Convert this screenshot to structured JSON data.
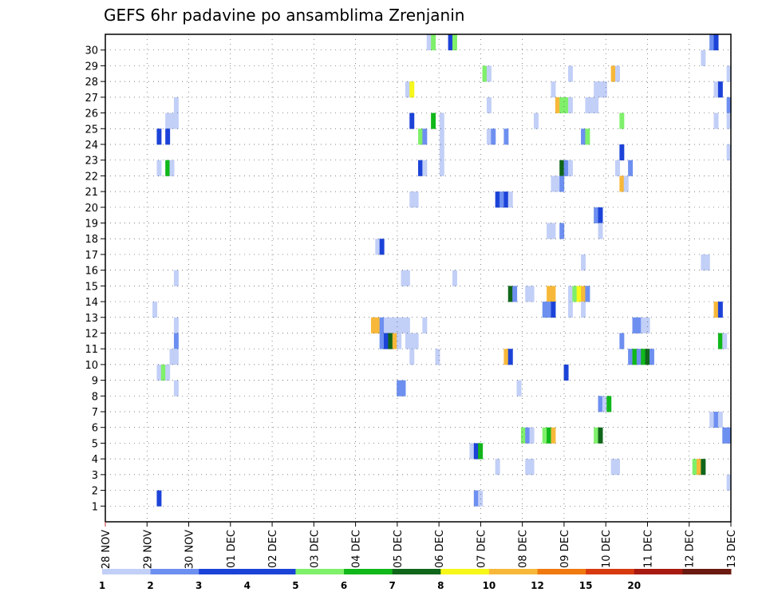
{
  "chart_data": {
    "type": "heatmap",
    "title": "GEFS 6hr padavine po ansamblima Zrenjanin",
    "xlabel": "",
    "ylabel": "",
    "x_tick_labels": [
      "28 NOV",
      "29 NOV",
      "30 NOV",
      "01 DEC",
      "02 DEC",
      "03 DEC",
      "04 DEC",
      "05 DEC",
      "06 DEC",
      "07 DEC",
      "08 DEC",
      "09 DEC",
      "10 DEC",
      "11 DEC",
      "12 DEC",
      "13 DEC"
    ],
    "x_range_days": [
      0,
      15
    ],
    "y_tick_labels": [
      "1",
      "2",
      "3",
      "4",
      "5",
      "6",
      "7",
      "8",
      "9",
      "10",
      "11",
      "12",
      "13",
      "14",
      "15",
      "16",
      "17",
      "18",
      "19",
      "20",
      "21",
      "22",
      "23",
      "24",
      "25",
      "26",
      "27",
      "28",
      "29",
      "30"
    ],
    "y_range": [
      0,
      30
    ],
    "grid": "dotted",
    "time_step_hours": 6,
    "colorbar": {
      "labels": [
        "1",
        "2",
        "3",
        "4",
        "5",
        "6",
        "7",
        "8",
        "10",
        "12",
        "15",
        "20"
      ],
      "colors": [
        "#c2cff7",
        "#6d8ff0",
        "#1c43d8",
        "#1c43d8",
        "#7ff06a",
        "#10b81a",
        "#10661a",
        "#f7f71a",
        "#f7b83a",
        "#f07a10",
        "#d83a10",
        "#a81a10",
        "#6a1a10"
      ]
    },
    "cells": [
      [
        30,
        75,
        1
      ],
      [
        30,
        76,
        5
      ],
      [
        30,
        80,
        3
      ],
      [
        30,
        81,
        5
      ],
      [
        30,
        141,
        2
      ],
      [
        30,
        142,
        3
      ],
      [
        29,
        139,
        1
      ],
      [
        28,
        88,
        5
      ],
      [
        28,
        89,
        1
      ],
      [
        28,
        108,
        1
      ],
      [
        28,
        118,
        10
      ],
      [
        28,
        119,
        1
      ],
      [
        28,
        145,
        1
      ],
      [
        27,
        70,
        1
      ],
      [
        27,
        71,
        8
      ],
      [
        27,
        104,
        1
      ],
      [
        27,
        114,
        1
      ],
      [
        27,
        115,
        1
      ],
      [
        27,
        116,
        1
      ],
      [
        27,
        142,
        1
      ],
      [
        27,
        143,
        3
      ],
      [
        26,
        16,
        1
      ],
      [
        26,
        89,
        1
      ],
      [
        26,
        105,
        10
      ],
      [
        26,
        106,
        5
      ],
      [
        26,
        107,
        5
      ],
      [
        26,
        108,
        1
      ],
      [
        26,
        112,
        1
      ],
      [
        26,
        113,
        1
      ],
      [
        26,
        114,
        1
      ],
      [
        26,
        145,
        2
      ],
      [
        25,
        14,
        1
      ],
      [
        25,
        15,
        1
      ],
      [
        25,
        16,
        1
      ],
      [
        25,
        71,
        3
      ],
      [
        25,
        76,
        6
      ],
      [
        25,
        78,
        1
      ],
      [
        25,
        100,
        1
      ],
      [
        25,
        120,
        5
      ],
      [
        25,
        142,
        1
      ],
      [
        25,
        145,
        1
      ],
      [
        24,
        12,
        3
      ],
      [
        24,
        14,
        3
      ],
      [
        24,
        73,
        5
      ],
      [
        24,
        74,
        2
      ],
      [
        24,
        78,
        1
      ],
      [
        24,
        89,
        1
      ],
      [
        24,
        90,
        2
      ],
      [
        24,
        93,
        2
      ],
      [
        24,
        111,
        2
      ],
      [
        24,
        112,
        5
      ],
      [
        23,
        78,
        1
      ],
      [
        23,
        120,
        3
      ],
      [
        23,
        145,
        1
      ],
      [
        22,
        12,
        1
      ],
      [
        22,
        14,
        6
      ],
      [
        22,
        15,
        1
      ],
      [
        22,
        73,
        3
      ],
      [
        22,
        74,
        1
      ],
      [
        22,
        78,
        1
      ],
      [
        22,
        106,
        7
      ],
      [
        22,
        107,
        2
      ],
      [
        22,
        108,
        1
      ],
      [
        22,
        119,
        1
      ],
      [
        22,
        122,
        2
      ],
      [
        21,
        104,
        1
      ],
      [
        21,
        105,
        1
      ],
      [
        21,
        106,
        2
      ],
      [
        21,
        120,
        10
      ],
      [
        21,
        121,
        1
      ],
      [
        20,
        71,
        1
      ],
      [
        20,
        72,
        1
      ],
      [
        20,
        91,
        3
      ],
      [
        20,
        92,
        2
      ],
      [
        20,
        93,
        3
      ],
      [
        20,
        94,
        1
      ],
      [
        19,
        114,
        2
      ],
      [
        19,
        115,
        3
      ],
      [
        18,
        103,
        1
      ],
      [
        18,
        104,
        1
      ],
      [
        18,
        106,
        2
      ],
      [
        18,
        115,
        1
      ],
      [
        17,
        63,
        1
      ],
      [
        17,
        64,
        3
      ],
      [
        16,
        111,
        1
      ],
      [
        16,
        139,
        1
      ],
      [
        16,
        140,
        1
      ],
      [
        15,
        16,
        1
      ],
      [
        15,
        69,
        1
      ],
      [
        15,
        70,
        1
      ],
      [
        15,
        81,
        1
      ],
      [
        14,
        94,
        7
      ],
      [
        14,
        95,
        2
      ],
      [
        14,
        98,
        1
      ],
      [
        14,
        99,
        1
      ],
      [
        14,
        103,
        10
      ],
      [
        14,
        104,
        10
      ],
      [
        14,
        108,
        1
      ],
      [
        14,
        109,
        5
      ],
      [
        14,
        110,
        8
      ],
      [
        14,
        111,
        10
      ],
      [
        14,
        112,
        2
      ],
      [
        13,
        11,
        1
      ],
      [
        13,
        102,
        2
      ],
      [
        13,
        103,
        2
      ],
      [
        13,
        104,
        3
      ],
      [
        13,
        108,
        1
      ],
      [
        13,
        111,
        1
      ],
      [
        13,
        142,
        10
      ],
      [
        13,
        143,
        3
      ],
      [
        12,
        16,
        1
      ],
      [
        12,
        62,
        11
      ],
      [
        12,
        63,
        10
      ],
      [
        12,
        64,
        2
      ],
      [
        12,
        65,
        1
      ],
      [
        12,
        66,
        1
      ],
      [
        12,
        67,
        1
      ],
      [
        12,
        68,
        1
      ],
      [
        12,
        69,
        1
      ],
      [
        12,
        70,
        1
      ],
      [
        12,
        74,
        1
      ],
      [
        12,
        123,
        2
      ],
      [
        12,
        124,
        2
      ],
      [
        12,
        125,
        1
      ],
      [
        12,
        126,
        1
      ],
      [
        11,
        16,
        2
      ],
      [
        11,
        64,
        2
      ],
      [
        11,
        65,
        3
      ],
      [
        11,
        66,
        7
      ],
      [
        11,
        67,
        10
      ],
      [
        11,
        68,
        1
      ],
      [
        11,
        70,
        1
      ],
      [
        11,
        71,
        1
      ],
      [
        11,
        72,
        1
      ],
      [
        11,
        120,
        2
      ],
      [
        11,
        143,
        6
      ],
      [
        11,
        144,
        1
      ],
      [
        10,
        15,
        1
      ],
      [
        10,
        16,
        1
      ],
      [
        10,
        71,
        1
      ],
      [
        10,
        77,
        1
      ],
      [
        10,
        93,
        10
      ],
      [
        10,
        94,
        3
      ],
      [
        10,
        122,
        2
      ],
      [
        10,
        123,
        6
      ],
      [
        10,
        124,
        2
      ],
      [
        10,
        125,
        6
      ],
      [
        10,
        126,
        7
      ],
      [
        10,
        127,
        2
      ],
      [
        9,
        12,
        1
      ],
      [
        9,
        13,
        5
      ],
      [
        9,
        14,
        1
      ],
      [
        9,
        107,
        3
      ],
      [
        8,
        16,
        1
      ],
      [
        8,
        68,
        2
      ],
      [
        8,
        69,
        2
      ],
      [
        8,
        96,
        1
      ],
      [
        7,
        115,
        2
      ],
      [
        7,
        116,
        1
      ],
      [
        7,
        117,
        6
      ],
      [
        6,
        141,
        1
      ],
      [
        6,
        142,
        2
      ],
      [
        6,
        143,
        1
      ],
      [
        5,
        97,
        5
      ],
      [
        5,
        98,
        2
      ],
      [
        5,
        99,
        1
      ],
      [
        5,
        102,
        5
      ],
      [
        5,
        103,
        6
      ],
      [
        5,
        104,
        11
      ],
      [
        5,
        114,
        5
      ],
      [
        5,
        115,
        7
      ],
      [
        5,
        144,
        2
      ],
      [
        5,
        145,
        2
      ],
      [
        4,
        85,
        1
      ],
      [
        4,
        86,
        3
      ],
      [
        4,
        87,
        6
      ],
      [
        3,
        91,
        1
      ],
      [
        3,
        98,
        1
      ],
      [
        3,
        99,
        1
      ],
      [
        3,
        118,
        1
      ],
      [
        3,
        119,
        1
      ],
      [
        3,
        137,
        5
      ],
      [
        3,
        138,
        10
      ],
      [
        3,
        139,
        7
      ],
      [
        2,
        145,
        1
      ],
      [
        1,
        12,
        3
      ],
      [
        1,
        86,
        2
      ],
      [
        1,
        87,
        1
      ]
    ]
  }
}
